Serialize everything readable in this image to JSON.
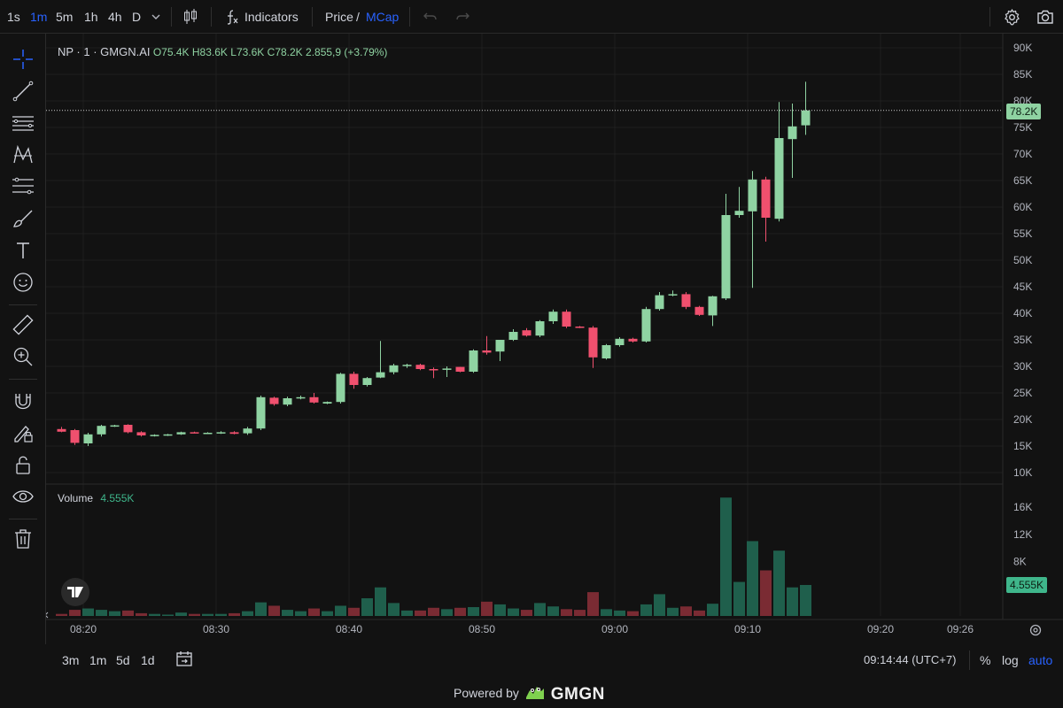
{
  "toolbar": {
    "timeframes": [
      "1s",
      "1m",
      "5m",
      "1h",
      "4h",
      "D"
    ],
    "active_timeframe": "1m",
    "indicators_label": "Indicators",
    "price_label": "Price",
    "slash": "/",
    "mcap_label": "MCap"
  },
  "legend": {
    "symbol": "NP · 1 · GMGN.AI",
    "open": "O75.4K",
    "high": "H83.6K",
    "low": "L73.6K",
    "close": "C78.2K",
    "change": "2.855,9 (+3.79%)"
  },
  "volume_legend": {
    "label": "Volume",
    "value": "4.555K"
  },
  "price_tag": "78.2K",
  "volume_tag": "4.555K",
  "bottom": {
    "ranges": [
      "3m",
      "1m",
      "5d",
      "1d"
    ],
    "clock": "09:14:44 (UTC+7)",
    "percent": "%",
    "log": "log",
    "auto": "auto"
  },
  "powered_by": {
    "text": "Powered by",
    "brand": "GMGN"
  },
  "colors": {
    "up": "#8fd3a2",
    "down": "#f0506e",
    "vol_up": "#1f5f4c",
    "vol_down": "#7a2b33",
    "accent": "#2962ff"
  },
  "chart_data": {
    "type": "candlestick",
    "price_axis": {
      "ticks": [
        "10K",
        "15K",
        "20K",
        "25K",
        "30K",
        "35K",
        "40K",
        "45K",
        "50K",
        "55K",
        "60K",
        "65K",
        "70K",
        "75K",
        "80K",
        "85K",
        "90K"
      ],
      "range": [
        10000,
        90000
      ]
    },
    "volume_axis": {
      "ticks": [
        "8K",
        "12K",
        "16K"
      ],
      "range": [
        0,
        16000
      ]
    },
    "time_axis": {
      "ticks": [
        "08:20",
        "08:30",
        "08:40",
        "08:50",
        "09:00",
        "09:10",
        "09:20",
        "09:26"
      ]
    },
    "time_range": [
      "08:18",
      "09:26"
    ],
    "candles": [
      {
        "t": "08:18",
        "o": 18200,
        "h": 18600,
        "l": 17600,
        "c": 17700,
        "v": 300
      },
      {
        "t": "08:19",
        "o": 18000,
        "h": 18200,
        "l": 15200,
        "c": 15600,
        "v": 900
      },
      {
        "t": "08:20",
        "o": 15500,
        "h": 17500,
        "l": 15000,
        "c": 17200,
        "v": 1100
      },
      {
        "t": "08:21",
        "o": 17200,
        "h": 19000,
        "l": 16800,
        "c": 18800,
        "v": 900
      },
      {
        "t": "08:22",
        "o": 18800,
        "h": 19000,
        "l": 18600,
        "c": 18900,
        "v": 700
      },
      {
        "t": "08:23",
        "o": 19000,
        "h": 19100,
        "l": 17400,
        "c": 17600,
        "v": 800
      },
      {
        "t": "08:24",
        "o": 17600,
        "h": 17800,
        "l": 16800,
        "c": 17000,
        "v": 400
      },
      {
        "t": "08:25",
        "o": 17000,
        "h": 17200,
        "l": 16800,
        "c": 17100,
        "v": 300
      },
      {
        "t": "08:26",
        "o": 17000,
        "h": 17300,
        "l": 16900,
        "c": 17200,
        "v": 200
      },
      {
        "t": "08:27",
        "o": 17200,
        "h": 17700,
        "l": 17100,
        "c": 17600,
        "v": 500
      },
      {
        "t": "08:28",
        "o": 17600,
        "h": 17700,
        "l": 17400,
        "c": 17500,
        "v": 300
      },
      {
        "t": "08:29",
        "o": 17500,
        "h": 17600,
        "l": 17400,
        "c": 17500,
        "v": 300
      },
      {
        "t": "08:30",
        "o": 17500,
        "h": 17800,
        "l": 17300,
        "c": 17600,
        "v": 300
      },
      {
        "t": "08:31",
        "o": 17600,
        "h": 17800,
        "l": 17200,
        "c": 17300,
        "v": 400
      },
      {
        "t": "08:32",
        "o": 17400,
        "h": 18600,
        "l": 17100,
        "c": 18300,
        "v": 700
      },
      {
        "t": "08:33",
        "o": 18300,
        "h": 24500,
        "l": 18000,
        "c": 24200,
        "v": 2000
      },
      {
        "t": "08:34",
        "o": 24100,
        "h": 24300,
        "l": 22600,
        "c": 22900,
        "v": 1500
      },
      {
        "t": "08:35",
        "o": 22800,
        "h": 24300,
        "l": 22500,
        "c": 24000,
        "v": 900
      },
      {
        "t": "08:36",
        "o": 24000,
        "h": 24500,
        "l": 23800,
        "c": 24200,
        "v": 700
      },
      {
        "t": "08:37",
        "o": 24200,
        "h": 25000,
        "l": 23000,
        "c": 23200,
        "v": 1100
      },
      {
        "t": "08:38",
        "o": 23000,
        "h": 23400,
        "l": 22900,
        "c": 23300,
        "v": 700
      },
      {
        "t": "08:39",
        "o": 23300,
        "h": 28800,
        "l": 23000,
        "c": 28600,
        "v": 1500
      },
      {
        "t": "08:40",
        "o": 28600,
        "h": 29000,
        "l": 25800,
        "c": 26500,
        "v": 1200
      },
      {
        "t": "08:41",
        "o": 26500,
        "h": 28000,
        "l": 26200,
        "c": 27800,
        "v": 2600
      },
      {
        "t": "08:42",
        "o": 27900,
        "h": 34800,
        "l": 27800,
        "c": 28900,
        "v": 4200
      },
      {
        "t": "08:43",
        "o": 28900,
        "h": 30500,
        "l": 28500,
        "c": 30200,
        "v": 1900
      },
      {
        "t": "08:44",
        "o": 30200,
        "h": 30500,
        "l": 29700,
        "c": 30300,
        "v": 800
      },
      {
        "t": "08:45",
        "o": 30300,
        "h": 30500,
        "l": 29300,
        "c": 29500,
        "v": 800
      },
      {
        "t": "08:46",
        "o": 29500,
        "h": 29800,
        "l": 27800,
        "c": 29400,
        "v": 1200
      },
      {
        "t": "08:47",
        "o": 29400,
        "h": 30000,
        "l": 28000,
        "c": 29600,
        "v": 1000
      },
      {
        "t": "08:48",
        "o": 29900,
        "h": 29900,
        "l": 28900,
        "c": 29000,
        "v": 1200
      },
      {
        "t": "08:49",
        "o": 29000,
        "h": 33200,
        "l": 28800,
        "c": 33000,
        "v": 1300
      },
      {
        "t": "08:50",
        "o": 33000,
        "h": 35700,
        "l": 32200,
        "c": 32600,
        "v": 2100
      },
      {
        "t": "08:51",
        "o": 32800,
        "h": 35000,
        "l": 31000,
        "c": 35000,
        "v": 1700
      },
      {
        "t": "08:52",
        "o": 35000,
        "h": 37000,
        "l": 34800,
        "c": 36500,
        "v": 1100
      },
      {
        "t": "08:53",
        "o": 36800,
        "h": 37200,
        "l": 35600,
        "c": 35800,
        "v": 900
      },
      {
        "t": "08:54",
        "o": 35800,
        "h": 38700,
        "l": 35500,
        "c": 38500,
        "v": 1900
      },
      {
        "t": "08:55",
        "o": 38500,
        "h": 40700,
        "l": 38000,
        "c": 40300,
        "v": 1400
      },
      {
        "t": "08:56",
        "o": 40300,
        "h": 40700,
        "l": 37200,
        "c": 37500,
        "v": 1000
      },
      {
        "t": "08:57",
        "o": 37500,
        "h": 37600,
        "l": 37200,
        "c": 37300,
        "v": 900
      },
      {
        "t": "08:58",
        "o": 37300,
        "h": 37600,
        "l": 29700,
        "c": 31700,
        "v": 3500
      },
      {
        "t": "08:59",
        "o": 31500,
        "h": 34200,
        "l": 31300,
        "c": 34000,
        "v": 1000
      },
      {
        "t": "09:00",
        "o": 34000,
        "h": 35500,
        "l": 33700,
        "c": 35200,
        "v": 800
      },
      {
        "t": "09:01",
        "o": 35200,
        "h": 35400,
        "l": 34500,
        "c": 34700,
        "v": 700
      },
      {
        "t": "09:02",
        "o": 34700,
        "h": 41200,
        "l": 34500,
        "c": 40800,
        "v": 1700
      },
      {
        "t": "09:03",
        "o": 40800,
        "h": 44000,
        "l": 40500,
        "c": 43400,
        "v": 3200
      },
      {
        "t": "09:04",
        "o": 43400,
        "h": 44300,
        "l": 43200,
        "c": 43600,
        "v": 1200
      },
      {
        "t": "09:05",
        "o": 43600,
        "h": 44000,
        "l": 40800,
        "c": 41200,
        "v": 1400
      },
      {
        "t": "09:06",
        "o": 41200,
        "h": 41400,
        "l": 39500,
        "c": 39700,
        "v": 800
      },
      {
        "t": "09:07",
        "o": 39600,
        "h": 43300,
        "l": 37600,
        "c": 43200,
        "v": 1800
      },
      {
        "t": "09:08",
        "o": 42800,
        "h": 62500,
        "l": 42500,
        "c": 58500,
        "v": 17400
      },
      {
        "t": "09:09",
        "o": 58500,
        "h": 63800,
        "l": 58000,
        "c": 59300,
        "v": 5000
      },
      {
        "t": "09:10",
        "o": 59200,
        "h": 66800,
        "l": 44800,
        "c": 65200,
        "v": 11000
      },
      {
        "t": "09:11",
        "o": 65200,
        "h": 65700,
        "l": 53500,
        "c": 58000,
        "v": 6700
      },
      {
        "t": "09:12",
        "o": 57800,
        "h": 79800,
        "l": 57300,
        "c": 73000,
        "v": 9600
      },
      {
        "t": "09:13",
        "o": 72800,
        "h": 79500,
        "l": 65500,
        "c": 75200,
        "v": 4200
      },
      {
        "t": "09:14",
        "o": 75400,
        "h": 83600,
        "l": 73600,
        "c": 78200,
        "v": 4555
      }
    ]
  }
}
